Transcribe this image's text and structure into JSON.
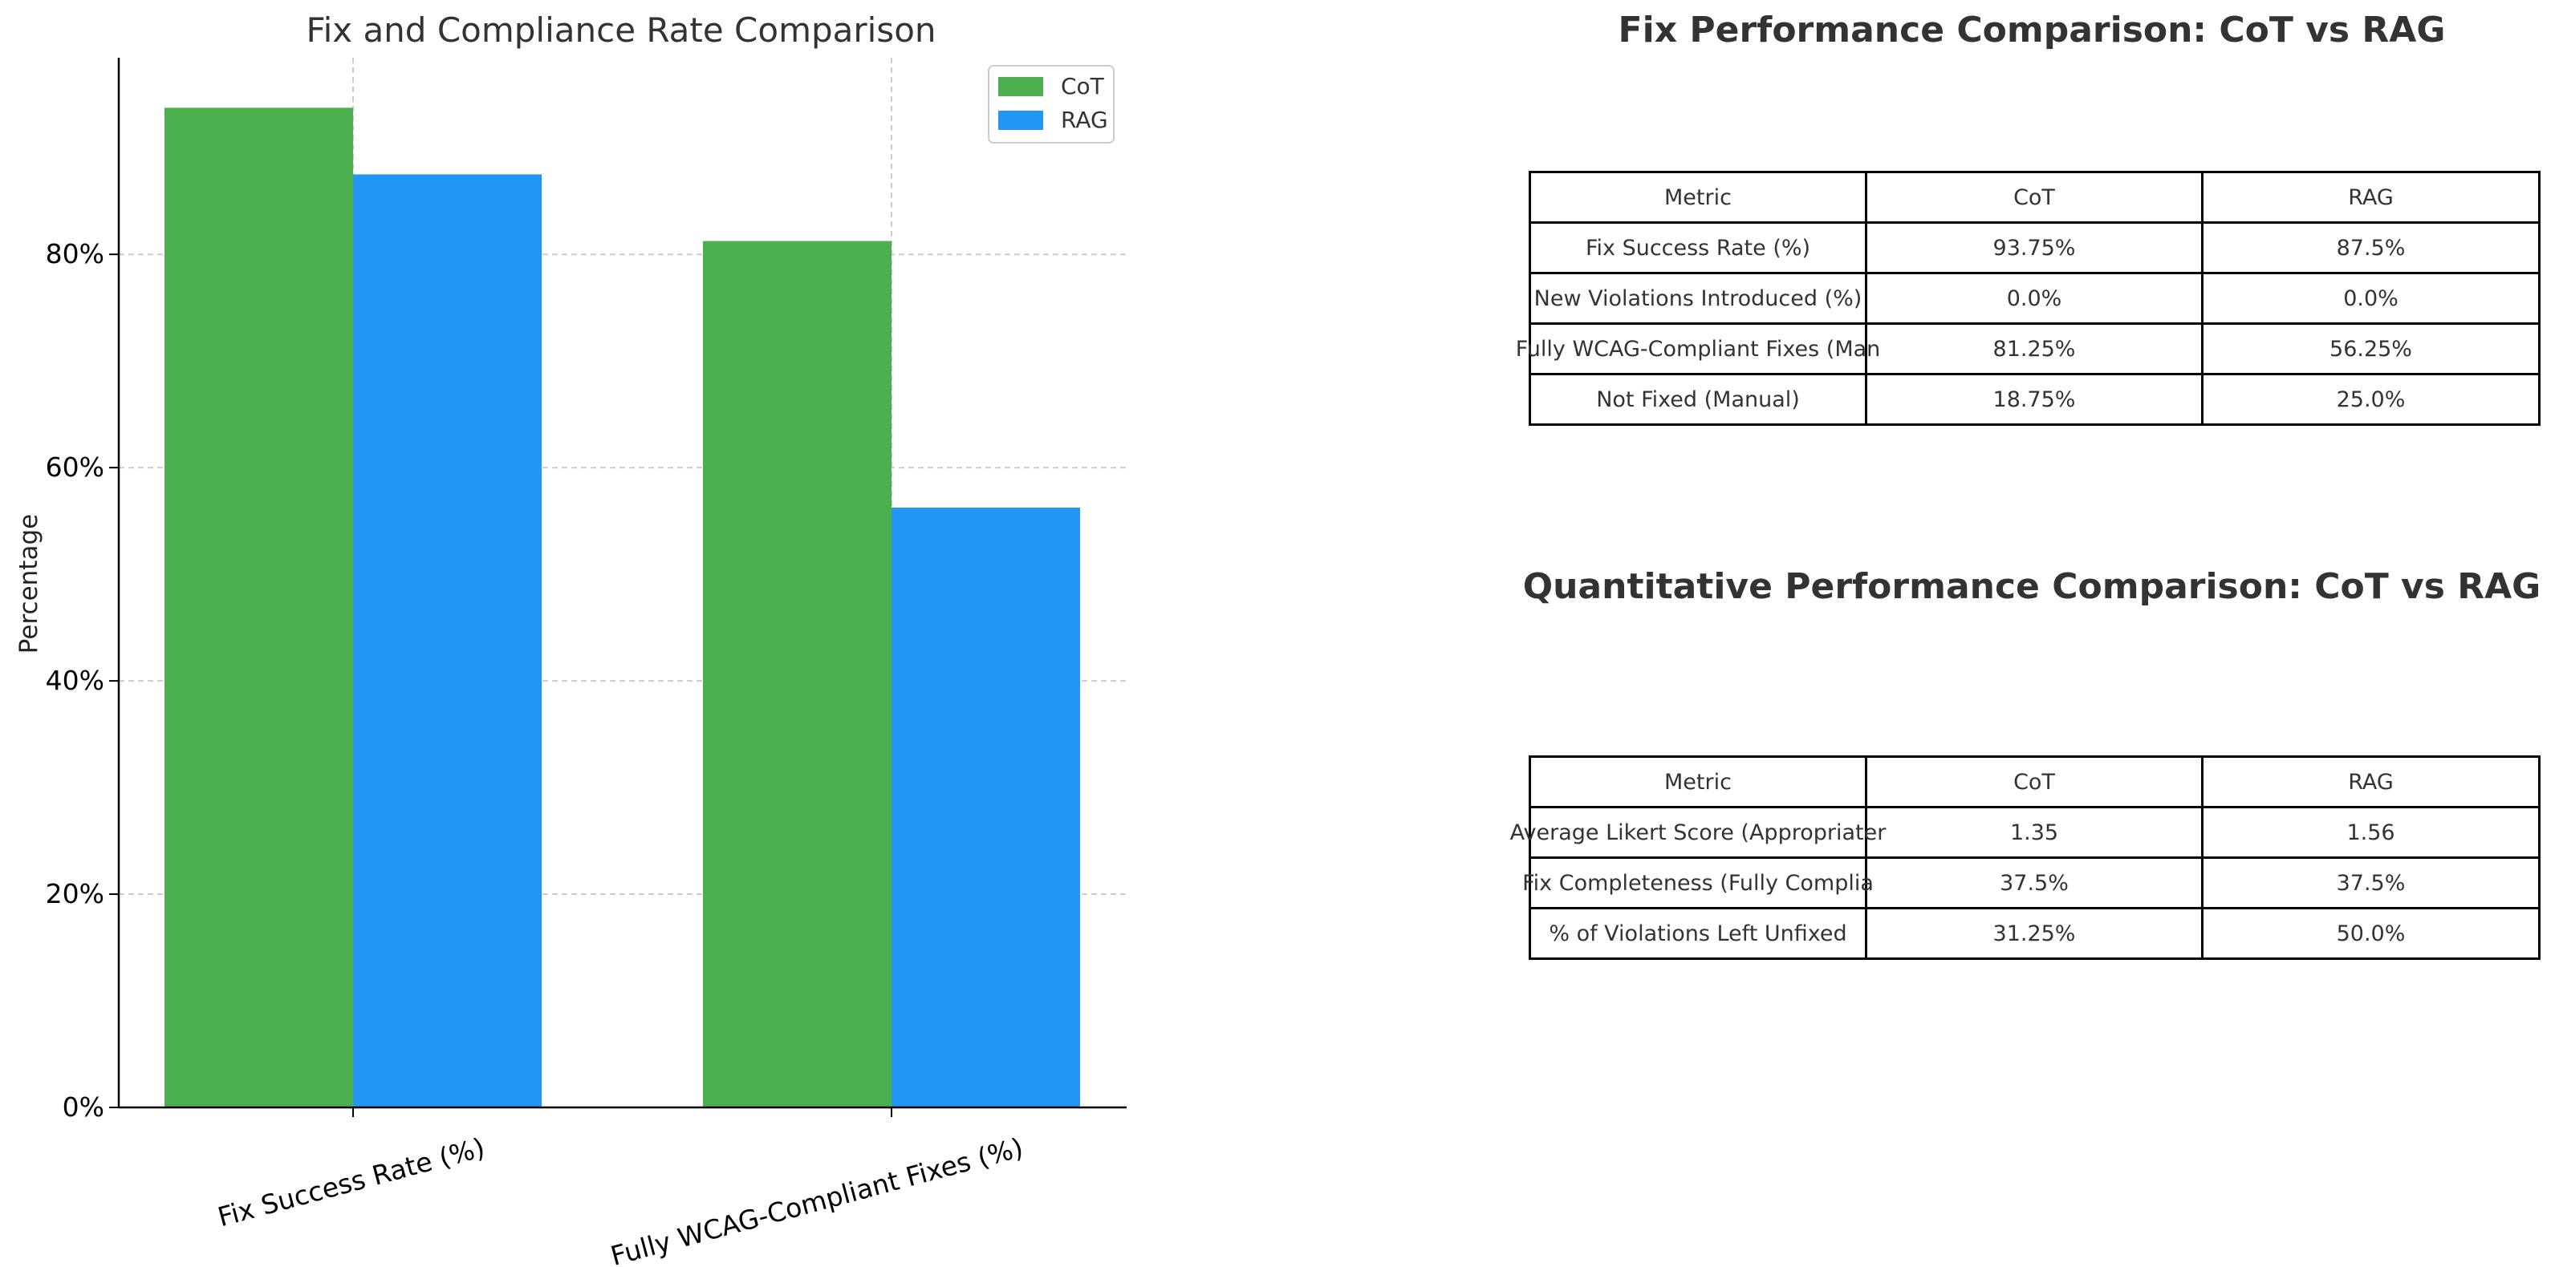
{
  "chart_data": {
    "type": "bar",
    "title": "Fix and Compliance Rate Comparison",
    "xlabel": "",
    "ylabel": "Percentage",
    "categories": [
      "Fix Success Rate (%)",
      "Fully WCAG-Compliant Fixes (%)"
    ],
    "series": [
      {
        "name": "CoT",
        "values": [
          93.75,
          81.25
        ],
        "color": "#4caf50"
      },
      {
        "name": "RAG",
        "values": [
          87.5,
          56.25
        ],
        "color": "#2196f3"
      }
    ],
    "ylim": [
      0,
      98.44
    ],
    "yticks": [
      0,
      20,
      40,
      60,
      80
    ],
    "ytick_labels": [
      "0%",
      "20%",
      "40%",
      "60%",
      "80%"
    ],
    "grid": true,
    "legend_position": "top-right"
  },
  "tables": [
    {
      "title": "Fix Performance Comparison: CoT vs RAG",
      "header": [
        "Metric",
        "CoT",
        "RAG"
      ],
      "rows": [
        [
          "Fix Success Rate (%)",
          "93.75%",
          "87.5%"
        ],
        [
          "New Violations Introduced (%)",
          "0.0%",
          "0.0%"
        ],
        [
          "Fully WCAG-Compliant Fixes (Man",
          "81.25%",
          "56.25%"
        ],
        [
          "Not Fixed (Manual)",
          "18.75%",
          "25.0%"
        ]
      ]
    },
    {
      "title": "Quantitative Performance Comparison: CoT vs RAG",
      "header": [
        "Metric",
        "CoT",
        "RAG"
      ],
      "rows": [
        [
          "Average Likert Score (Appropriater",
          "1.35",
          "1.56"
        ],
        [
          "Fix Completeness (Fully Complia",
          "37.5%",
          "37.5%"
        ],
        [
          "% of Violations Left Unfixed",
          "31.25%",
          "50.0%"
        ]
      ]
    }
  ]
}
